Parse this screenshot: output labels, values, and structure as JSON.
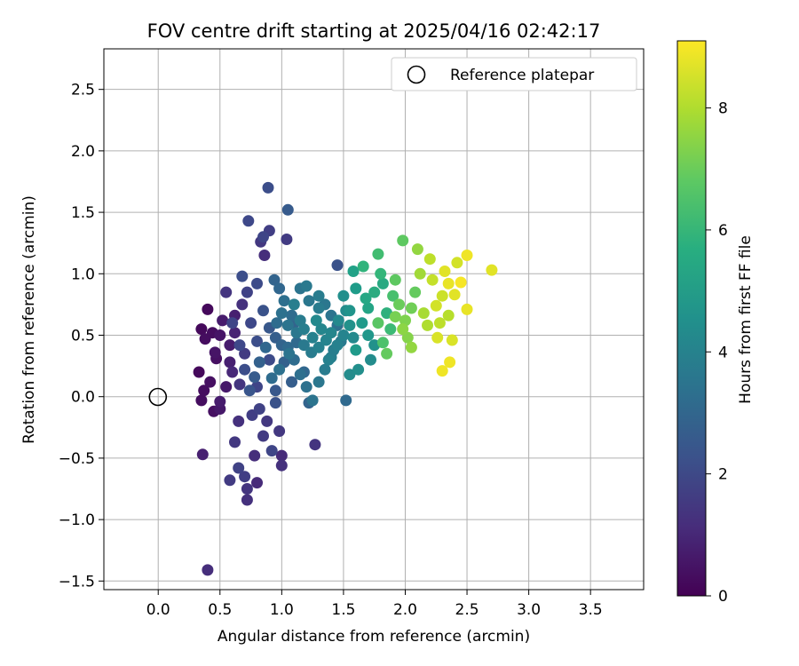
{
  "chart_data": {
    "type": "scatter",
    "title": "FOV centre drift starting at 2025/04/16 02:42:17",
    "xlabel": "Angular distance from reference (arcmin)",
    "ylabel": "Rotation from reference (arcmin)",
    "xlim": [
      -0.44,
      3.93
    ],
    "ylim": [
      -1.57,
      2.83
    ],
    "xticks": [
      0.0,
      0.5,
      1.0,
      1.5,
      2.0,
      2.5,
      3.0,
      3.5
    ],
    "xtick_labels": [
      "0.0",
      "0.5",
      "1.0",
      "1.5",
      "2.0",
      "2.5",
      "3.0",
      "3.5"
    ],
    "yticks": [
      -1.5,
      -1.0,
      -0.5,
      0.0,
      0.5,
      1.0,
      1.5,
      2.0,
      2.5
    ],
    "ytick_labels": [
      "−1.5",
      "−1.0",
      "−0.5",
      "0.0",
      "0.5",
      "1.0",
      "1.5",
      "2.0",
      "2.5"
    ],
    "grid": true,
    "legend": {
      "position": "top-right",
      "entries": [
        {
          "label": "Reference platepar",
          "marker": "open-circle"
        }
      ]
    },
    "reference_point": {
      "x": 0.0,
      "y": 0.0,
      "label": "Reference platepar"
    },
    "colorbar": {
      "label": "Hours from first FF file",
      "colormap": "viridis",
      "range": [
        0,
        9.1
      ],
      "ticks": [
        0,
        2,
        4,
        6,
        8
      ],
      "tick_labels": [
        "0",
        "2",
        "4",
        "6",
        "8"
      ]
    },
    "points": [
      [
        0.35,
        0.55,
        0.2
      ],
      [
        0.38,
        0.47,
        0.3
      ],
      [
        0.33,
        0.2,
        0.2
      ],
      [
        0.35,
        -0.03,
        0.3
      ],
      [
        0.4,
        0.71,
        0.2
      ],
      [
        0.42,
        0.12,
        0.4
      ],
      [
        0.45,
        -0.12,
        0.4
      ],
      [
        0.4,
        -1.41,
        1.2
      ],
      [
        0.36,
        -0.47,
        0.8
      ],
      [
        0.47,
        0.31,
        0.4
      ],
      [
        0.5,
        0.5,
        0.5
      ],
      [
        0.55,
        0.08,
        0.6
      ],
      [
        0.5,
        -0.1,
        0.6
      ],
      [
        0.58,
        0.42,
        0.7
      ],
      [
        0.62,
        0.66,
        0.8
      ],
      [
        0.55,
        0.85,
        1.4
      ],
      [
        0.6,
        0.2,
        1.0
      ],
      [
        0.65,
        -0.2,
        1.3
      ],
      [
        0.62,
        -0.37,
        1.5
      ],
      [
        0.58,
        -0.68,
        1.6
      ],
      [
        0.65,
        -0.58,
        1.8
      ],
      [
        0.7,
        -0.65,
        1.7
      ],
      [
        0.72,
        -0.75,
        1.4
      ],
      [
        0.72,
        -0.84,
        1.3
      ],
      [
        0.68,
        0.98,
        2.2
      ],
      [
        0.73,
        1.43,
        2.0
      ],
      [
        0.78,
        -0.48,
        1.2
      ],
      [
        0.8,
        -0.7,
        1.1
      ],
      [
        0.76,
        -0.15,
        1.7
      ],
      [
        0.82,
        -0.1,
        1.8
      ],
      [
        0.8,
        0.08,
        1.9
      ],
      [
        0.85,
        -0.32,
        1.6
      ],
      [
        0.88,
        -0.2,
        1.5
      ],
      [
        0.9,
        1.35,
        1.7
      ],
      [
        0.85,
        1.3,
        1.9
      ],
      [
        0.83,
        1.26,
        1.5
      ],
      [
        0.86,
        1.15,
        1.2
      ],
      [
        0.89,
        1.7,
        2.2
      ],
      [
        0.92,
        -0.44,
        1.9
      ],
      [
        0.95,
        -0.05,
        2.3
      ],
      [
        0.98,
        -0.28,
        1.5
      ],
      [
        1.0,
        -0.48,
        1.1
      ],
      [
        1.0,
        -0.56,
        1.3
      ],
      [
        1.04,
        1.28,
        1.6
      ],
      [
        1.05,
        1.52,
        2.6
      ],
      [
        1.08,
        0.12,
        2.7
      ],
      [
        1.02,
        0.28,
        2.8
      ],
      [
        1.1,
        0.6,
        2.9
      ],
      [
        0.95,
        0.05,
        2.5
      ],
      [
        0.9,
        0.3,
        2.1
      ],
      [
        0.8,
        0.45,
        2.2
      ],
      [
        0.75,
        0.6,
        2.0
      ],
      [
        0.7,
        0.35,
        1.6
      ],
      [
        0.66,
        0.1,
        1.4
      ],
      [
        0.58,
        0.28,
        0.8
      ],
      [
        0.52,
        0.62,
        0.7
      ],
      [
        0.46,
        0.36,
        0.5
      ],
      [
        0.5,
        -0.04,
        0.7
      ],
      [
        0.44,
        0.52,
        0.3
      ],
      [
        0.37,
        0.05,
        0.3
      ],
      [
        0.62,
        0.52,
        0.9
      ],
      [
        0.68,
        0.75,
        1.3
      ],
      [
        0.72,
        0.85,
        1.8
      ],
      [
        0.8,
        0.92,
        2.1
      ],
      [
        0.85,
        0.7,
        2.3
      ],
      [
        0.9,
        0.56,
        2.5
      ],
      [
        0.95,
        0.48,
        2.7
      ],
      [
        1.0,
        0.42,
        2.9
      ],
      [
        1.05,
        0.4,
        3.1
      ],
      [
        1.1,
        0.3,
        3.2
      ],
      [
        1.15,
        0.18,
        3.3
      ],
      [
        1.2,
        0.08,
        3.4
      ],
      [
        1.25,
        -0.03,
        3.5
      ],
      [
        1.3,
        0.12,
        3.6
      ],
      [
        1.35,
        0.22,
        3.8
      ],
      [
        1.4,
        0.32,
        3.9
      ],
      [
        1.45,
        0.42,
        4.0
      ],
      [
        1.5,
        0.5,
        4.1
      ],
      [
        1.55,
        0.18,
        4.4
      ],
      [
        1.52,
        -0.03,
        3.1
      ],
      [
        1.27,
        -0.39,
        1.4
      ],
      [
        1.22,
        -0.05,
        2.9
      ],
      [
        1.18,
        0.2,
        3.0
      ],
      [
        1.12,
        0.44,
        3.1
      ],
      [
        1.08,
        0.66,
        3.2
      ],
      [
        1.02,
        0.78,
        3.3
      ],
      [
        0.98,
        0.88,
        3.0
      ],
      [
        0.94,
        0.95,
        2.9
      ],
      [
        1.15,
        0.88,
        3.5
      ],
      [
        1.2,
        0.9,
        3.7
      ],
      [
        1.3,
        0.82,
        3.8
      ],
      [
        1.35,
        0.75,
        3.6
      ],
      [
        1.4,
        0.66,
        3.5
      ],
      [
        1.45,
        0.58,
        3.4
      ],
      [
        1.48,
        0.45,
        3.7
      ],
      [
        1.42,
        0.38,
        3.9
      ],
      [
        1.38,
        0.3,
        4.0
      ],
      [
        1.32,
        0.55,
        4.2
      ],
      [
        1.28,
        0.62,
        4.3
      ],
      [
        1.25,
        0.48,
        4.0
      ],
      [
        1.18,
        0.55,
        3.9
      ],
      [
        1.12,
        0.52,
        3.6
      ],
      [
        1.06,
        0.35,
        3.5
      ],
      [
        0.98,
        0.22,
        3.4
      ],
      [
        0.92,
        0.15,
        3.2
      ],
      [
        0.87,
        0.4,
        3.0
      ],
      [
        0.82,
        0.28,
        2.8
      ],
      [
        0.78,
        0.16,
        2.6
      ],
      [
        0.74,
        0.05,
        2.4
      ],
      [
        0.7,
        0.22,
        2.2
      ],
      [
        0.66,
        0.42,
        2.0
      ],
      [
        0.6,
        0.6,
        1.9
      ],
      [
        1.45,
        1.07,
        2.3
      ],
      [
        1.5,
        0.82,
        4.5
      ],
      [
        1.55,
        0.7,
        4.7
      ],
      [
        1.6,
        0.88,
        5.0
      ],
      [
        1.58,
        1.02,
        5.2
      ],
      [
        1.65,
        0.6,
        4.9
      ],
      [
        1.7,
        0.5,
        4.8
      ],
      [
        1.75,
        0.42,
        4.6
      ],
      [
        1.72,
        0.3,
        4.4
      ],
      [
        1.68,
        0.8,
        5.4
      ],
      [
        1.66,
        1.06,
        5.9
      ],
      [
        1.75,
        0.85,
        5.6
      ],
      [
        1.78,
        1.16,
        6.3
      ],
      [
        1.8,
        1.0,
        6.0
      ],
      [
        1.82,
        0.92,
        5.5
      ],
      [
        1.85,
        0.68,
        5.8
      ],
      [
        1.88,
        0.55,
        6.2
      ],
      [
        1.82,
        0.44,
        6.5
      ],
      [
        1.78,
        0.6,
        6.7
      ],
      [
        1.9,
        0.82,
        6.4
      ],
      [
        1.92,
        0.95,
        6.8
      ],
      [
        1.95,
        0.75,
        7.0
      ],
      [
        1.98,
        1.27,
        6.8
      ],
      [
        2.0,
        0.62,
        7.3
      ],
      [
        2.02,
        0.48,
        7.4
      ],
      [
        2.05,
        0.4,
        7.6
      ],
      [
        2.05,
        0.72,
        7.1
      ],
      [
        2.08,
        0.85,
        6.9
      ],
      [
        2.1,
        1.2,
        7.6
      ],
      [
        2.12,
        1.0,
        7.8
      ],
      [
        2.15,
        0.68,
        7.9
      ],
      [
        2.18,
        0.58,
        8.0
      ],
      [
        2.2,
        1.12,
        8.2
      ],
      [
        2.22,
        0.95,
        8.3
      ],
      [
        2.25,
        0.74,
        8.5
      ],
      [
        2.26,
        0.48,
        8.6
      ],
      [
        2.28,
        0.6,
        8.2
      ],
      [
        2.3,
        0.82,
        8.4
      ],
      [
        2.32,
        1.02,
        8.7
      ],
      [
        2.35,
        0.92,
        8.8
      ],
      [
        2.3,
        0.21,
        8.9
      ],
      [
        2.36,
        0.28,
        8.9
      ],
      [
        2.38,
        0.46,
        8.6
      ],
      [
        2.4,
        0.83,
        8.7
      ],
      [
        2.42,
        1.09,
        8.5
      ],
      [
        2.45,
        0.93,
        9.0
      ],
      [
        2.5,
        0.71,
        8.8
      ],
      [
        2.5,
        1.15,
        8.9
      ],
      [
        2.7,
        1.03,
        8.7
      ],
      [
        2.35,
        0.66,
        8.1
      ],
      [
        1.6,
        0.38,
        4.9
      ],
      [
        1.62,
        0.22,
        4.5
      ],
      [
        1.92,
        0.65,
        7.2
      ],
      [
        1.98,
        0.55,
        7.5
      ],
      [
        1.85,
        0.35,
        6.9
      ],
      [
        1.7,
        0.72,
        5.3
      ],
      [
        1.3,
        0.72,
        3.8
      ],
      [
        1.22,
        0.78,
        3.6
      ],
      [
        1.15,
        0.62,
        3.8
      ],
      [
        1.1,
        0.75,
        3.9
      ],
      [
        1.05,
        0.58,
        3.5
      ],
      [
        1.0,
        0.68,
        3.4
      ],
      [
        0.96,
        0.6,
        3.2
      ],
      [
        1.18,
        0.42,
        3.7
      ],
      [
        1.24,
        0.36,
        3.8
      ],
      [
        1.3,
        0.4,
        4.0
      ],
      [
        1.36,
        0.46,
        4.1
      ],
      [
        1.4,
        0.52,
        4.2
      ],
      [
        1.46,
        0.62,
        4.3
      ],
      [
        1.52,
        0.7,
        4.4
      ],
      [
        1.55,
        0.58,
        4.6
      ],
      [
        1.58,
        0.48,
        4.3
      ]
    ]
  }
}
